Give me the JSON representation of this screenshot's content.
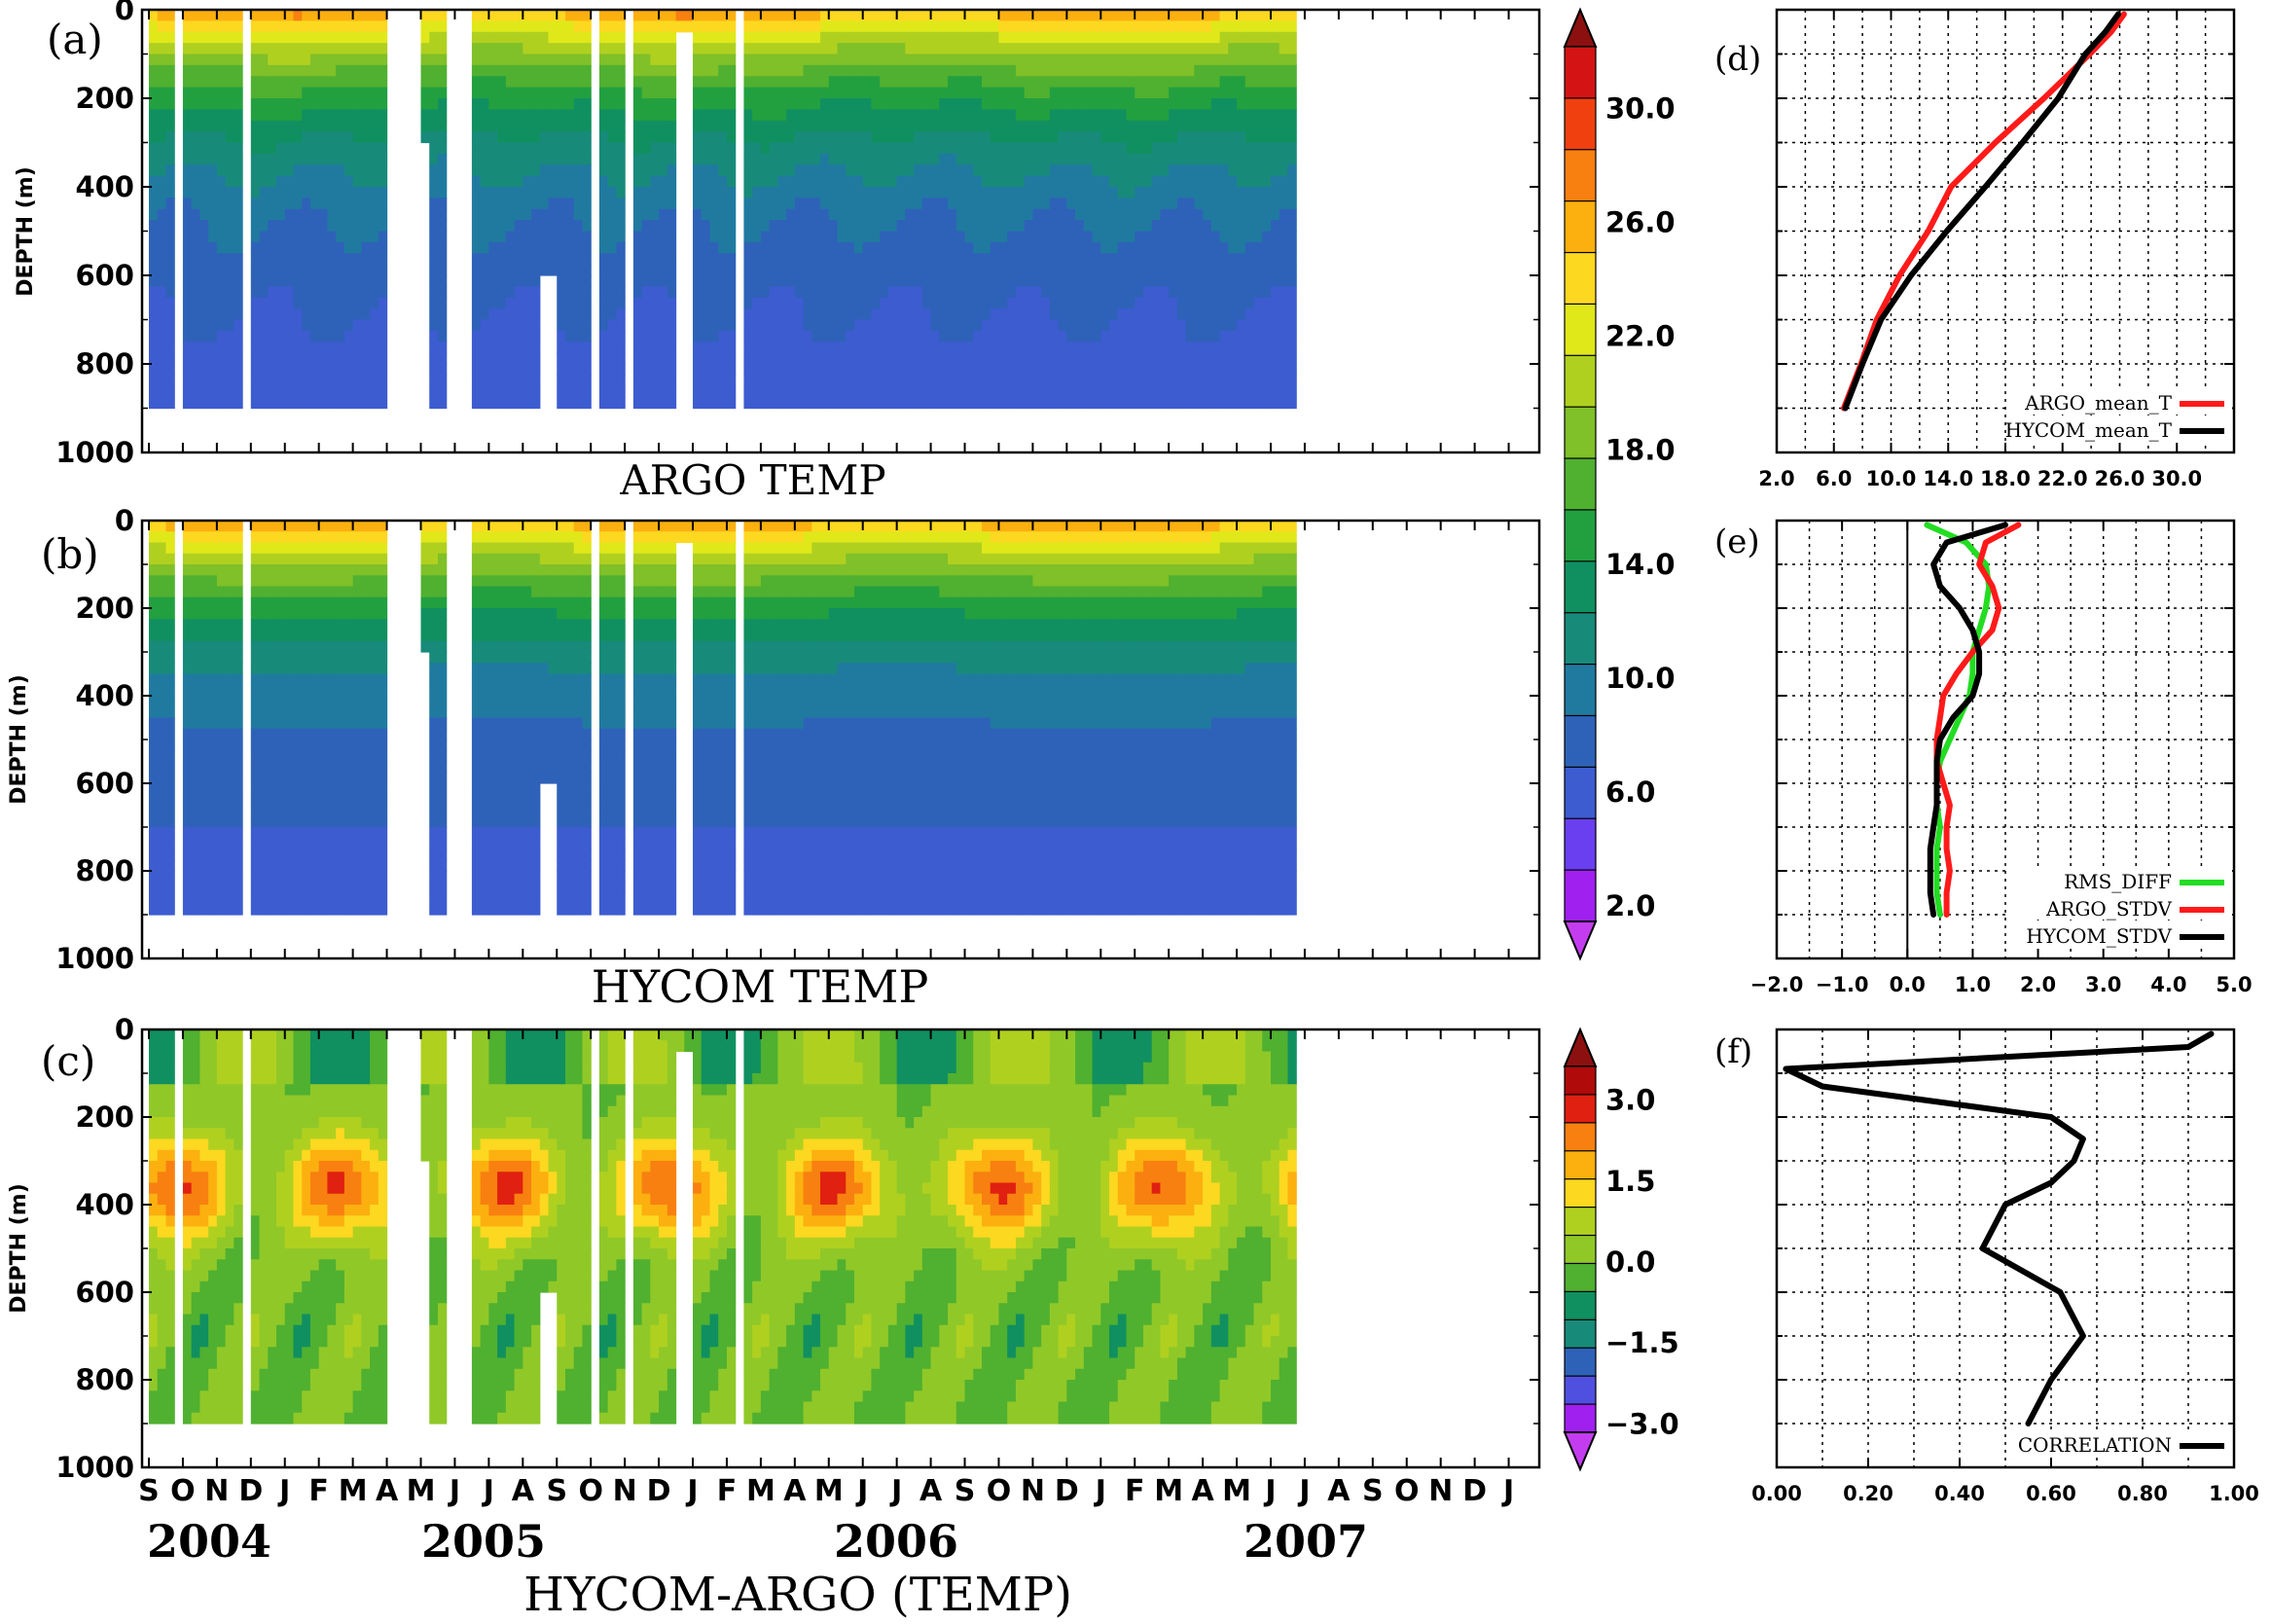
{
  "chart_data": [
    {
      "id": "a",
      "type": "heatmap",
      "panel_label": "(a)",
      "title": "ARGO TEMP",
      "ylabel": "DEPTH (m)",
      "ylim": [
        0,
        1000
      ],
      "y_ticks": [
        "0",
        "200",
        "400",
        "600",
        "800",
        "1000"
      ],
      "x_ticks": [
        "S",
        "O",
        "N",
        "D",
        "J",
        "F",
        "M",
        "A",
        "M",
        "J",
        "J",
        "A",
        "S",
        "O",
        "N",
        "D",
        "J",
        "F",
        "M",
        "A",
        "M",
        "J",
        "J",
        "A",
        "S",
        "O",
        "N",
        "D",
        "J",
        "F",
        "M",
        "A",
        "M",
        "J",
        "J",
        "A",
        "S",
        "O",
        "N",
        "D",
        "J"
      ],
      "x_years": [
        "2004",
        "2005",
        "2006",
        "2007"
      ],
      "data_range_months": [
        0,
        33.6
      ],
      "max_depth_m": 900,
      "gaps_months": [
        [
          0.7,
          1.0
        ],
        [
          2.7,
          3.0
        ],
        [
          6.9,
          7.9
        ],
        [
          8.8,
          9.4
        ],
        [
          12.9,
          13.3
        ],
        [
          13.9,
          14.2
        ],
        [
          15.4,
          15.6
        ],
        [
          15.9,
          16.1
        ],
        [
          17.2,
          17.5
        ]
      ],
      "partial_gaps": [
        {
          "months": [
            7.9,
            8.2
          ],
          "from_depth_m": 300
        },
        {
          "months": [
            11.4,
            11.9
          ],
          "from_depth_m": 600
        },
        {
          "months": [
            15.6,
            15.9
          ],
          "from_depth_m": 50
        }
      ]
    },
    {
      "id": "b",
      "type": "heatmap",
      "panel_label": "(b)",
      "title": "HYCOM TEMP",
      "ylabel": "DEPTH (m)",
      "ylim": [
        0,
        1000
      ],
      "y_ticks": [
        "0",
        "200",
        "400",
        "600",
        "800",
        "1000"
      ]
    },
    {
      "id": "c",
      "type": "heatmap",
      "panel_label": "(c)",
      "title": "HYCOM-ARGO (TEMP)",
      "ylabel": "DEPTH (m)",
      "ylim": [
        0,
        1000
      ],
      "y_ticks": [
        "0",
        "200",
        "400",
        "600",
        "800",
        "1000"
      ]
    },
    {
      "id": "cbar1",
      "type": "colorbar",
      "labels": [
        "30.0",
        "26.0",
        "22.0",
        "18.0",
        "14.0",
        "10.0",
        "6.0",
        "2.0"
      ],
      "levels": [
        2,
        4,
        6,
        8,
        10,
        12,
        14,
        16,
        18,
        20,
        22,
        24,
        26,
        28,
        30,
        32
      ],
      "colors": [
        "#a020f0",
        "#6a3ff0",
        "#3c5cd0",
        "#2e62b8",
        "#207aa0",
        "#188a7a",
        "#109060",
        "#22a040",
        "#50b030",
        "#80c028",
        "#b0d020",
        "#e0e81a",
        "#fdd820",
        "#fbb010",
        "#f88010",
        "#f04010",
        "#d41414"
      ],
      "under_color": "#c43cf0",
      "over_color": "#8c1010"
    },
    {
      "id": "cbar2",
      "type": "colorbar",
      "labels": [
        "3.0",
        "1.5",
        "0.0",
        "−1.5",
        "−3.0"
      ],
      "levels": [
        -3.0,
        -2.5,
        -2.0,
        -1.5,
        -1.0,
        -0.5,
        0.0,
        0.5,
        1.0,
        1.5,
        2.0,
        2.5,
        3.0
      ],
      "colors": [
        "#a020f0",
        "#5050e0",
        "#2e62b8",
        "#188a7a",
        "#109060",
        "#50b030",
        "#90c828",
        "#b0d020",
        "#fdd820",
        "#fbb010",
        "#f88010",
        "#e02010",
        "#b00a0a"
      ],
      "under_color": "#c43cf0",
      "over_color": "#8c1010"
    },
    {
      "id": "d",
      "type": "line",
      "panel_label": "(d)",
      "xlim": [
        2.0,
        34.0
      ],
      "ylim": [
        0,
        1000
      ],
      "x_ticks": [
        "2.0",
        "6.0",
        "10.0",
        "14.0",
        "18.0",
        "22.0",
        "26.0",
        "30.0"
      ],
      "depth": [
        10,
        50,
        100,
        200,
        300,
        400,
        500,
        600,
        700,
        800,
        900
      ],
      "series": [
        {
          "name": "ARGO_mean_T",
          "color": "#ff1a1a",
          "values": [
            26.3,
            25.4,
            23.9,
            20.7,
            17.3,
            14.2,
            12.6,
            10.6,
            9.0,
            7.9,
            6.7
          ]
        },
        {
          "name": "HYCOM_mean_T",
          "color": "#000000",
          "values": [
            25.9,
            25.0,
            23.6,
            21.7,
            19.2,
            16.6,
            13.9,
            11.4,
            9.3,
            8.0,
            6.8
          ]
        }
      ],
      "legend": [
        "ARGO_mean_T",
        "HYCOM_mean_T"
      ],
      "legend_position": "bottom-right"
    },
    {
      "id": "e",
      "type": "line",
      "panel_label": "(e)",
      "xlim": [
        -2.0,
        5.0
      ],
      "ylim": [
        0,
        1000
      ],
      "x_ticks": [
        "−2.0",
        "−1.0",
        "0.0",
        "1.0",
        "2.0",
        "3.0",
        "4.0",
        "5.0"
      ],
      "depth": [
        10,
        50,
        100,
        150,
        200,
        250,
        300,
        350,
        400,
        450,
        500,
        550,
        600,
        650,
        700,
        750,
        800,
        850,
        900
      ],
      "series": [
        {
          "name": "RMS_DIFF",
          "color": "#22dd22",
          "values": [
            0.3,
            0.9,
            1.2,
            1.25,
            1.2,
            1.1,
            1.0,
            1.0,
            0.95,
            0.8,
            0.65,
            0.5,
            0.45,
            0.45,
            0.5,
            0.45,
            0.45,
            0.45,
            0.5
          ]
        },
        {
          "name": "ARGO_STDV",
          "color": "#ff1a1a",
          "values": [
            1.7,
            1.2,
            1.1,
            1.3,
            1.4,
            1.3,
            1.0,
            0.75,
            0.55,
            0.5,
            0.45,
            0.45,
            0.55,
            0.65,
            0.6,
            0.6,
            0.65,
            0.6,
            0.6
          ]
        },
        {
          "name": "HYCOM_STDV",
          "color": "#000000",
          "values": [
            1.5,
            0.6,
            0.4,
            0.5,
            0.8,
            1.0,
            1.1,
            1.1,
            1.0,
            0.7,
            0.5,
            0.45,
            0.45,
            0.45,
            0.4,
            0.35,
            0.35,
            0.35,
            0.4
          ]
        }
      ],
      "legend": [
        "RMS_DIFF",
        "ARGO_STDV",
        "HYCOM_STDV"
      ],
      "legend_position": "bottom-right"
    },
    {
      "id": "f",
      "type": "line",
      "panel_label": "(f)",
      "xlim": [
        0.0,
        1.0
      ],
      "ylim": [
        0,
        1000
      ],
      "x_ticks": [
        "0.00",
        "0.20",
        "0.40",
        "0.60",
        "0.80",
        "1.00"
      ],
      "depth": [
        10,
        40,
        90,
        130,
        200,
        250,
        300,
        350,
        400,
        500,
        600,
        700,
        800,
        900
      ],
      "series": [
        {
          "name": "CORRELATION",
          "color": "#000000",
          "values": [
            0.95,
            0.9,
            0.02,
            0.1,
            0.6,
            0.67,
            0.65,
            0.6,
            0.5,
            0.45,
            0.62,
            0.67,
            0.6,
            0.55
          ]
        }
      ],
      "legend": [
        "CORRELATION"
      ],
      "legend_position": "bottom-right"
    }
  ]
}
